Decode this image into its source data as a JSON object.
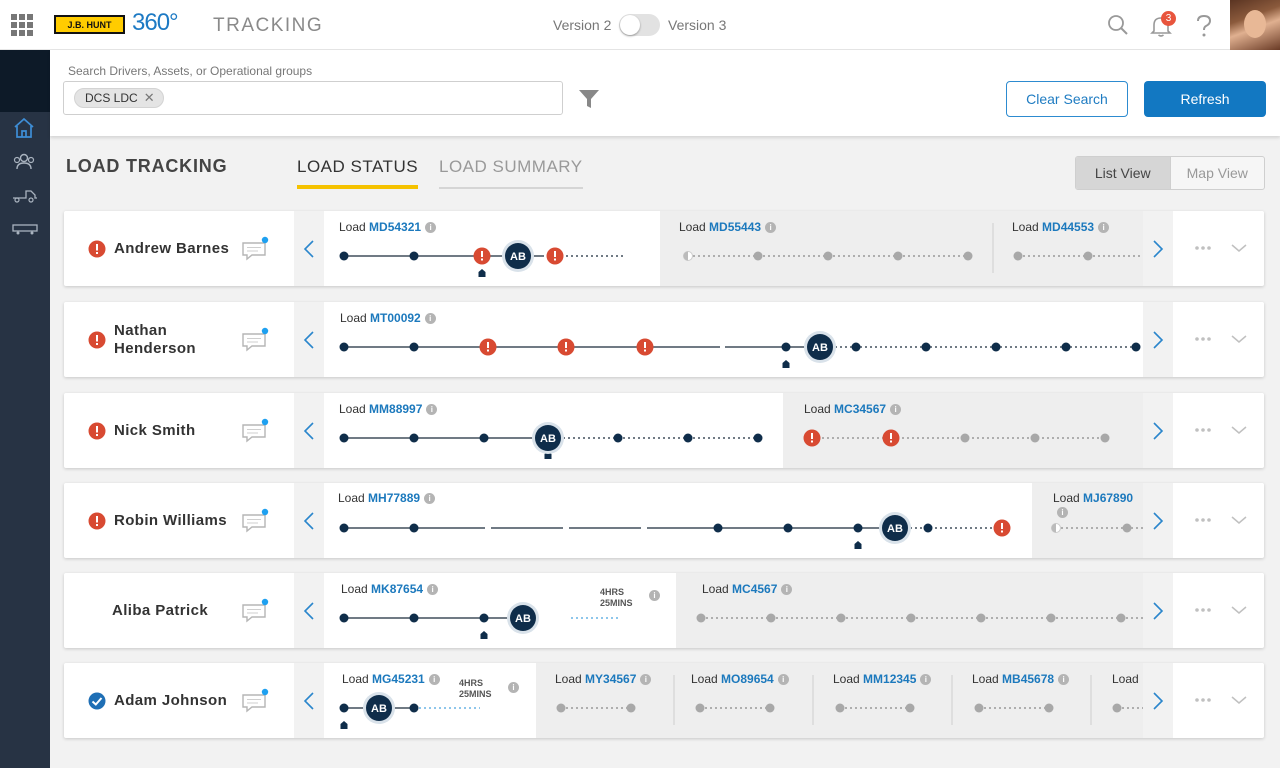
{
  "header": {
    "app_title": "TRACKING",
    "logo_text": "J.B. HUNT",
    "logo_360": "360°",
    "version_left": "Version 2",
    "version_right": "Version 3",
    "notification_count": "3",
    "icons": [
      "apps-grid-icon",
      "search-icon",
      "bell-icon",
      "help-icon",
      "user-avatar"
    ]
  },
  "sidebar": {
    "icons": [
      "home-icon",
      "people-icon",
      "truck-icon",
      "trailer-icon"
    ]
  },
  "search": {
    "label": "Search Drivers, Assets, or Operational groups",
    "chip": "DCS LDC",
    "clear_label": "Clear Search",
    "refresh_label": "Refresh"
  },
  "page": {
    "title": "LOAD TRACKING",
    "tabs": [
      "LOAD STATUS",
      "LOAD SUMMARY"
    ],
    "active_tab": "LOAD STATUS",
    "views": [
      "List View",
      "Map View"
    ],
    "active_view": "List View"
  },
  "avatar_initials": "AB",
  "load_prefix": "Load",
  "colors": {
    "accent": "#1278c2",
    "alert": "#d84a32",
    "ok": "#1f6fb5",
    "node_dark": "#0f2d4a",
    "node_gray": "#a8a8a8",
    "tab_underline": "#f5c200"
  },
  "rows": [
    {
      "driver": "Andrew Barnes",
      "status": "alert",
      "loads": [
        "MD54321",
        "MD55443",
        "MD44553"
      ]
    },
    {
      "driver": "Nathan Henderson",
      "status": "alert",
      "loads": [
        "MT00092"
      ]
    },
    {
      "driver": "Nick Smith",
      "status": "alert",
      "loads": [
        "MM88997",
        "MC34567"
      ]
    },
    {
      "driver": "Robin Williams",
      "status": "alert",
      "loads": [
        "MH77889",
        "MJ67890"
      ]
    },
    {
      "driver": "Aliba Patrick",
      "status": "none",
      "loads": [
        "MK87654",
        "MC4567"
      ],
      "eta": [
        "4HRS",
        "25MINS"
      ]
    },
    {
      "driver": "Adam Johnson",
      "status": "ok",
      "loads": [
        "MG45231",
        "MY34567",
        "MO89654",
        "MM12345",
        "MB45678",
        ""
      ],
      "eta": [
        "4HRS",
        "25MINS"
      ]
    }
  ]
}
